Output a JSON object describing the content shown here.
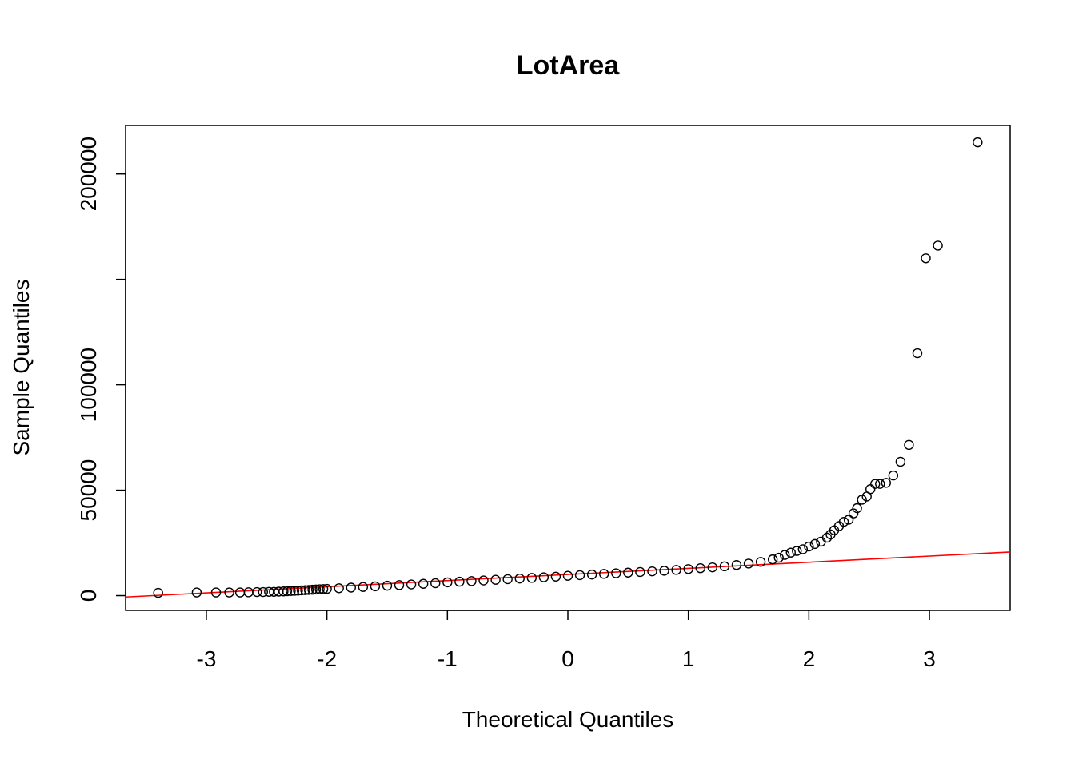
{
  "chart_data": {
    "type": "scatter",
    "title": "LotArea",
    "xlabel": "Theoretical Quantiles",
    "ylabel": "Sample Quantiles",
    "xlim": [
      -3.67,
      3.67
    ],
    "ylim": [
      -7000,
      223000
    ],
    "x_ticks": [
      {
        "value": -3,
        "label": "-3"
      },
      {
        "value": -2,
        "label": "-2"
      },
      {
        "value": -1,
        "label": "-1"
      },
      {
        "value": 0,
        "label": "0"
      },
      {
        "value": 1,
        "label": "1"
      },
      {
        "value": 2,
        "label": "2"
      },
      {
        "value": 3,
        "label": "3"
      }
    ],
    "y_ticks": [
      {
        "value": 0,
        "label": "0"
      },
      {
        "value": 50000,
        "label": "50000"
      },
      {
        "value": 100000,
        "label": "100000"
      },
      {
        "value": 150000,
        "label": ""
      },
      {
        "value": 200000,
        "label": "200000"
      }
    ],
    "reference_line": {
      "color": "#ff0000",
      "x1": -3.67,
      "y1": -650,
      "x2": 3.67,
      "y2": 20700
    },
    "point_color": "#000000",
    "points": [
      [
        -3.4,
        1300
      ],
      [
        -3.08,
        1500
      ],
      [
        -2.92,
        1500
      ],
      [
        -2.81,
        1500
      ],
      [
        -2.72,
        1500
      ],
      [
        -2.65,
        1600
      ],
      [
        -2.58,
        1700
      ],
      [
        -2.53,
        1700
      ],
      [
        -2.48,
        1800
      ],
      [
        -2.44,
        1800
      ],
      [
        -2.4,
        1900
      ],
      [
        -2.36,
        2000
      ],
      [
        -2.33,
        2100
      ],
      [
        -2.3,
        2200
      ],
      [
        -2.27,
        2300
      ],
      [
        -2.24,
        2400
      ],
      [
        -2.21,
        2500
      ],
      [
        -2.18,
        2600
      ],
      [
        -2.15,
        2700
      ],
      [
        -2.12,
        2800
      ],
      [
        -2.09,
        2900
      ],
      [
        -2.06,
        3000
      ],
      [
        -2.03,
        3100
      ],
      [
        -2.0,
        3200
      ],
      [
        -1.9,
        3500
      ],
      [
        -1.8,
        3800
      ],
      [
        -1.7,
        4100
      ],
      [
        -1.6,
        4400
      ],
      [
        -1.5,
        4700
      ],
      [
        -1.4,
        5000
      ],
      [
        -1.3,
        5300
      ],
      [
        -1.2,
        5600
      ],
      [
        -1.1,
        5900
      ],
      [
        -1.0,
        6300
      ],
      [
        -0.9,
        6600
      ],
      [
        -0.8,
        6900
      ],
      [
        -0.7,
        7200
      ],
      [
        -0.6,
        7500
      ],
      [
        -0.5,
        7800
      ],
      [
        -0.4,
        8100
      ],
      [
        -0.3,
        8400
      ],
      [
        -0.2,
        8700
      ],
      [
        -0.1,
        9000
      ],
      [
        0.0,
        9400
      ],
      [
        0.1,
        9700
      ],
      [
        0.2,
        10000
      ],
      [
        0.3,
        10300
      ],
      [
        0.4,
        10600
      ],
      [
        0.5,
        10900
      ],
      [
        0.6,
        11200
      ],
      [
        0.7,
        11500
      ],
      [
        0.8,
        11800
      ],
      [
        0.9,
        12200
      ],
      [
        1.0,
        12600
      ],
      [
        1.1,
        13000
      ],
      [
        1.2,
        13400
      ],
      [
        1.3,
        13900
      ],
      [
        1.4,
        14500
      ],
      [
        1.5,
        15200
      ],
      [
        1.6,
        16000
      ],
      [
        1.7,
        17200
      ],
      [
        1.75,
        18000
      ],
      [
        1.8,
        19300
      ],
      [
        1.85,
        20400
      ],
      [
        1.9,
        21200
      ],
      [
        1.95,
        22000
      ],
      [
        2.0,
        23300
      ],
      [
        2.05,
        24500
      ],
      [
        2.1,
        25600
      ],
      [
        2.15,
        27500
      ],
      [
        2.18,
        29000
      ],
      [
        2.21,
        31000
      ],
      [
        2.25,
        33000
      ],
      [
        2.29,
        35000
      ],
      [
        2.33,
        36000
      ],
      [
        2.37,
        39000
      ],
      [
        2.4,
        41500
      ],
      [
        2.44,
        45500
      ],
      [
        2.48,
        47000
      ],
      [
        2.51,
        50500
      ],
      [
        2.55,
        53000
      ],
      [
        2.59,
        53000
      ],
      [
        2.64,
        53500
      ],
      [
        2.7,
        57000
      ],
      [
        2.76,
        63500
      ],
      [
        2.83,
        71500
      ],
      [
        2.9,
        115000
      ],
      [
        2.97,
        160000
      ],
      [
        3.07,
        166000
      ],
      [
        3.4,
        215000
      ]
    ]
  }
}
